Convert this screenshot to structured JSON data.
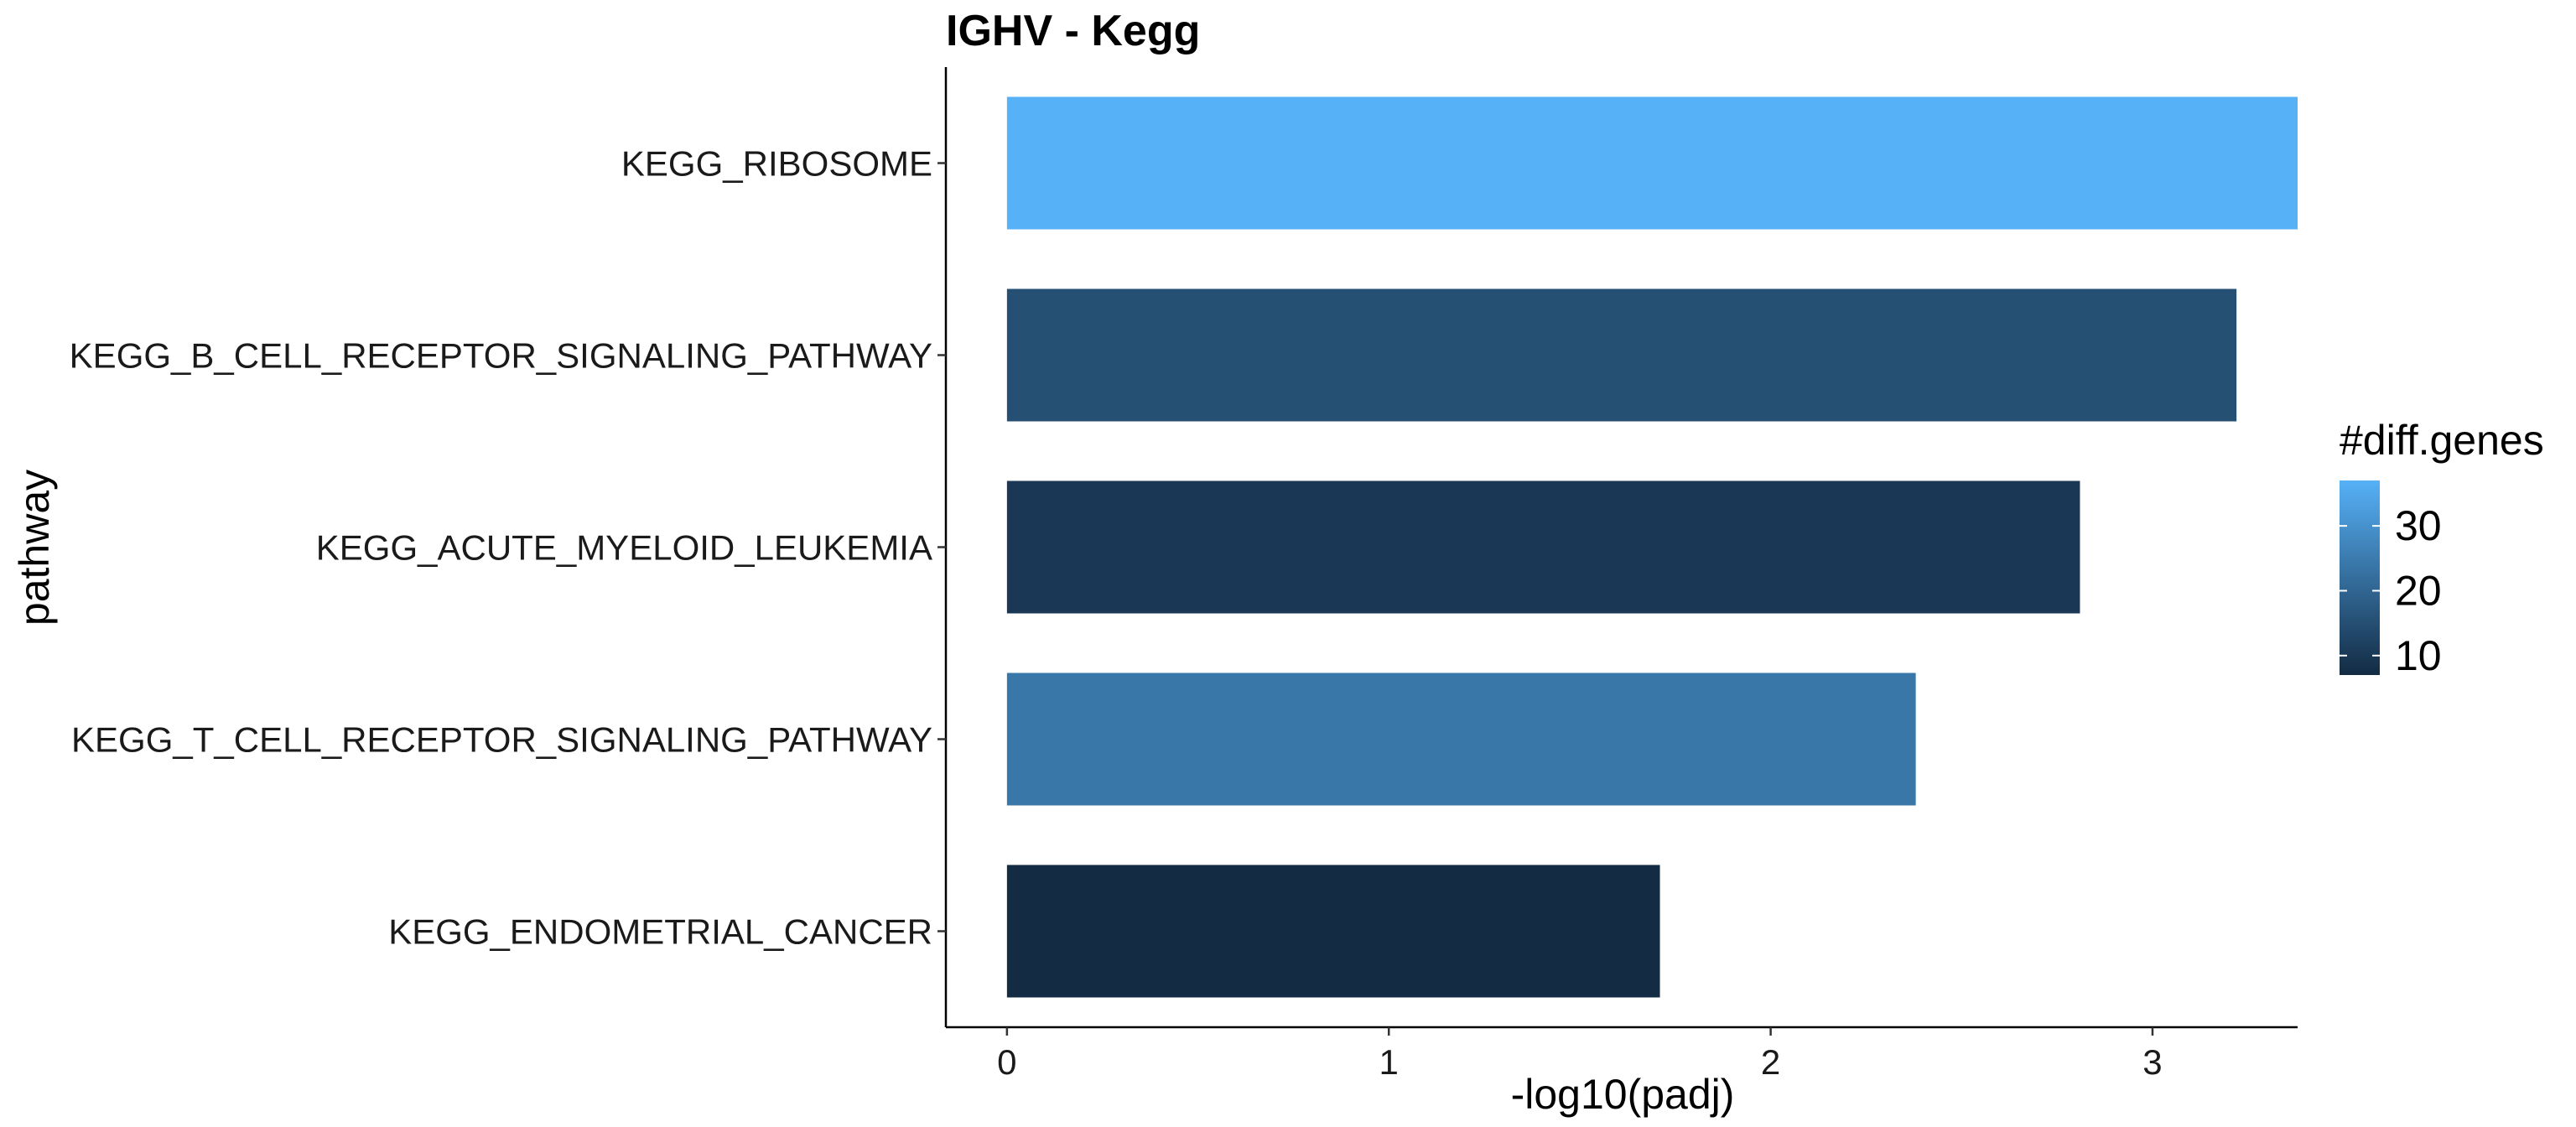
{
  "chart_data": {
    "type": "bar",
    "orientation": "horizontal",
    "title": "IGHV - Kegg",
    "xlabel": "-log10(padj)",
    "ylabel": "pathway",
    "xlim": [
      -0.16,
      3.38
    ],
    "xticks": [
      0,
      1,
      2,
      3
    ],
    "x_tick_labels": [
      "0",
      "1",
      "2",
      "3"
    ],
    "categories": [
      "KEGG_RIBOSOME",
      "KEGG_B_CELL_RECEPTOR_SIGNALING_PATHWAY",
      "KEGG_ACUTE_MYELOID_LEUKEMIA",
      "KEGG_T_CELL_RECEPTOR_SIGNALING_PATHWAY",
      "KEGG_ENDOMETRIAL_CANCER"
    ],
    "values": [
      3.38,
      3.22,
      2.81,
      2.38,
      1.71
    ],
    "fill_values": [
      37,
      15,
      10,
      24,
      7
    ],
    "grid": false,
    "legend": {
      "title": "#diff.genes",
      "position": "right",
      "breaks": [
        30,
        20,
        10
      ],
      "break_labels": [
        "30",
        "20",
        "10"
      ],
      "range": [
        7,
        37
      ],
      "color_low": "#132B43",
      "color_high": "#56B1F7"
    }
  }
}
